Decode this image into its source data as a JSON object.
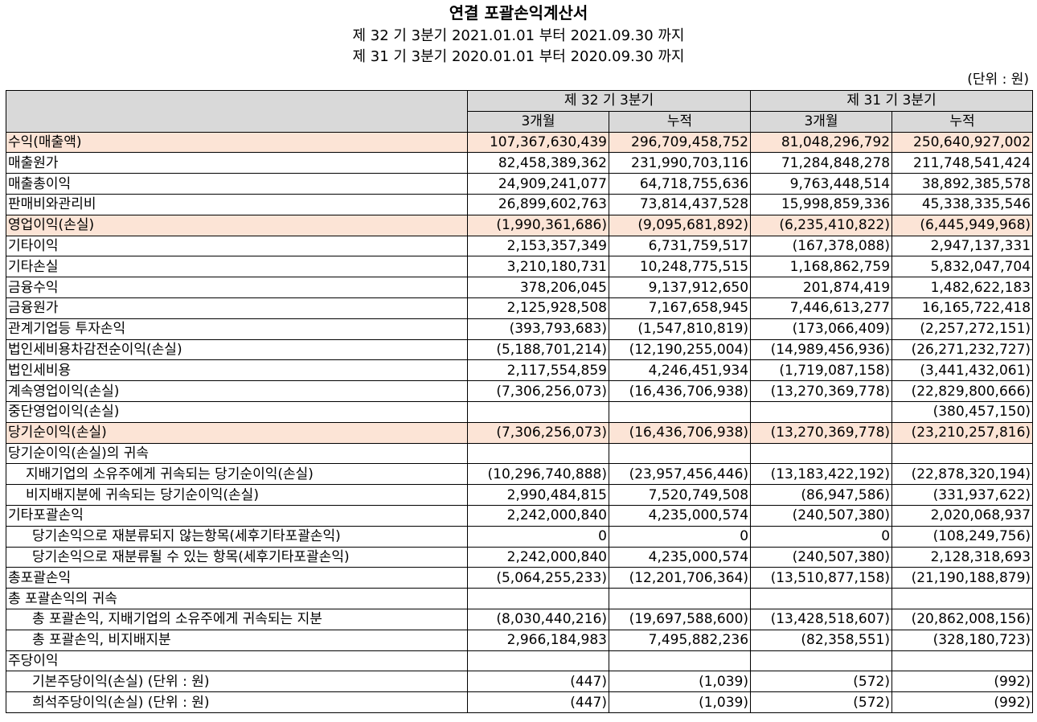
{
  "title": "연결 포괄손익계산서",
  "period_current": "제 32 기 3분기 2021.01.01 부터 2021.09.30 까지",
  "period_prior": "제 31 기 3분기 2020.01.01 부터 2020.09.30 까지",
  "unit": "(단위 : 원)",
  "header": {
    "group_current": "제 32 기 3분기",
    "group_prior": "제 31 기 3분기",
    "three_month": "3개월",
    "cumulative": "누적"
  },
  "rows": [
    {
      "label": "수익(매출액)",
      "v": [
        "107,367,630,439",
        "296,709,458,752",
        "81,048,296,792",
        "250,640,927,002"
      ]
    },
    {
      "label": "매출원가",
      "v": [
        "82,458,389,362",
        "231,990,703,116",
        "71,284,848,278",
        "211,748,541,424"
      ]
    },
    {
      "label": "매출총이익",
      "v": [
        "24,909,241,077",
        "64,718,755,636",
        "9,763,448,514",
        "38,892,385,578"
      ]
    },
    {
      "label": "판매비와관리비",
      "v": [
        "26,899,602,763",
        "73,814,437,528",
        "15,998,859,336",
        "45,338,335,546"
      ]
    },
    {
      "label": "영업이익(손실)",
      "v": [
        "(1,990,361,686)",
        "(9,095,681,892)",
        "(6,235,410,822)",
        "(6,445,949,968)"
      ]
    },
    {
      "label": "기타이익",
      "v": [
        "2,153,357,349",
        "6,731,759,517",
        "(167,378,088)",
        "2,947,137,331"
      ]
    },
    {
      "label": "기타손실",
      "v": [
        "3,210,180,731",
        "10,248,775,515",
        "1,168,862,759",
        "5,832,047,704"
      ]
    },
    {
      "label": "금융수익",
      "v": [
        "378,206,045",
        "9,137,912,650",
        "201,874,419",
        "1,482,622,183"
      ]
    },
    {
      "label": "금융원가",
      "v": [
        "2,125,928,508",
        "7,167,658,945",
        "7,446,613,277",
        "16,165,722,418"
      ]
    },
    {
      "label": "관계기업등 투자손익",
      "v": [
        "(393,793,683)",
        "(1,547,810,819)",
        "(173,066,409)",
        "(2,257,272,151)"
      ]
    },
    {
      "label": "법인세비용차감전순이익(손실)",
      "v": [
        "(5,188,701,214)",
        "(12,190,255,004)",
        "(14,989,456,936)",
        "(26,271,232,727)"
      ]
    },
    {
      "label": "법인세비용",
      "v": [
        "2,117,554,859",
        "4,246,451,934",
        "(1,719,087,158)",
        "(3,441,432,061)"
      ]
    },
    {
      "label": "계속영업이익(손실)",
      "v": [
        "(7,306,256,073)",
        "(16,436,706,938)",
        "(13,270,369,778)",
        "(22,829,800,666)"
      ]
    },
    {
      "label": "중단영업이익(손실)",
      "v": [
        "",
        "",
        "",
        "(380,457,150)"
      ]
    },
    {
      "label": "당기순이익(손실)",
      "v": [
        "(7,306,256,073)",
        "(16,436,706,938)",
        "(13,270,369,778)",
        "(23,210,257,816)"
      ]
    },
    {
      "label": "당기순이익(손실)의 귀속",
      "v": [
        "",
        "",
        "",
        ""
      ]
    },
    {
      "label": "지배기업의 소유주에게 귀속되는 당기순이익(손실)",
      "v": [
        "(10,296,740,888)",
        "(23,957,456,446)",
        "(13,183,422,192)",
        "(22,878,320,194)"
      ]
    },
    {
      "label": "비지배지분에 귀속되는 당기순이익(손실)",
      "v": [
        "2,990,484,815",
        "7,520,749,508",
        "(86,947,586)",
        "(331,937,622)"
      ]
    },
    {
      "label": "기타포괄손익",
      "v": [
        "2,242,000,840",
        "4,235,000,574",
        "(240,507,380)",
        "2,020,068,937"
      ]
    },
    {
      "label": "당기손익으로 재분류되지 않는항목(세후기타포괄손익)",
      "v": [
        "0",
        "0",
        "0",
        "(108,249,756)"
      ]
    },
    {
      "label": "당기손익으로 재분류될 수 있는 항목(세후기타포괄손익)",
      "v": [
        "2,242,000,840",
        "4,235,000,574",
        "(240,507,380)",
        "2,128,318,693"
      ]
    },
    {
      "label": "총포괄손익",
      "v": [
        "(5,064,255,233)",
        "(12,201,706,364)",
        "(13,510,877,158)",
        "(21,190,188,879)"
      ]
    },
    {
      "label": "총 포괄손익의 귀속",
      "v": [
        "",
        "",
        "",
        ""
      ]
    },
    {
      "label": "총 포괄손익, 지배기업의 소유주에게 귀속되는 지분",
      "v": [
        "(8,030,440,216)",
        "(19,697,588,600)",
        "(13,428,518,607)",
        "(20,862,008,156)"
      ]
    },
    {
      "label": "총 포괄손익, 비지배지분",
      "v": [
        "2,966,184,983",
        "7,495,882,236",
        "(82,358,551)",
        "(328,180,723)"
      ]
    },
    {
      "label": "주당이익",
      "v": [
        "",
        "",
        "",
        ""
      ]
    },
    {
      "label": "기본주당이익(손실) (단위 : 원)",
      "v": [
        "(447)",
        "(1,039)",
        "(572)",
        "(992)"
      ]
    },
    {
      "label": "희석주당이익(손실) (단위 : 원)",
      "v": [
        "(447)",
        "(1,039)",
        "(572)",
        "(992)"
      ]
    }
  ],
  "colors": {
    "header_bg": "#d9d9d9",
    "highlight_bg": "#fce4d6"
  }
}
